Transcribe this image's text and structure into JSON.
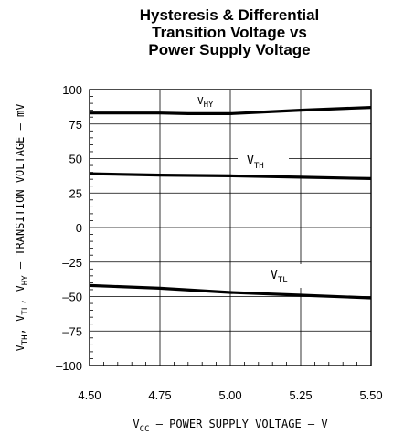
{
  "chart_data": {
    "type": "line",
    "title_lines": [
      "Hysteresis & Differential",
      "Transition Voltage vs",
      "Power Supply Voltage"
    ],
    "xlabel": {
      "main": "V",
      "sub": "CC",
      "rest": " – POWER SUPPLY VOLTAGE – V"
    },
    "ylabel": {
      "parts": [
        {
          "t": "V"
        },
        {
          "t": "TH",
          "sub": true
        },
        {
          "t": ", V"
        },
        {
          "t": "TL",
          "sub": true
        },
        {
          "t": ", V"
        },
        {
          "t": "HY",
          "sub": true
        },
        {
          "t": " – TRANSITION VOLTAGE – mV"
        }
      ]
    },
    "xlim": [
      4.5,
      5.5
    ],
    "ylim": [
      -100,
      100
    ],
    "x_ticks": [
      4.5,
      4.75,
      5.0,
      5.25,
      5.5
    ],
    "x_tick_labels": [
      "4.50",
      "4.75",
      "5.00",
      "5.25",
      "5.50"
    ],
    "y_ticks": [
      100,
      75,
      50,
      25,
      0,
      -25,
      -50,
      -75,
      -100
    ],
    "y_tick_labels": [
      "100",
      "75",
      "50",
      "25",
      "0",
      "–25",
      "–50",
      "–75",
      "–100"
    ],
    "grid": true,
    "series": [
      {
        "name": "V_HY",
        "label": {
          "main": "V",
          "sub": "HY"
        },
        "x": [
          4.5,
          4.75,
          4.85,
          5.0,
          5.25,
          5.5
        ],
        "y": [
          83,
          83,
          82.5,
          82.5,
          85,
          87
        ]
      },
      {
        "name": "V_TH",
        "label": {
          "main": "V",
          "sub": "TH"
        },
        "x": [
          4.5,
          4.75,
          5.0,
          5.25,
          5.5
        ],
        "y": [
          39,
          38,
          37.5,
          36.5,
          35.5
        ]
      },
      {
        "name": "V_TL",
        "label": {
          "main": "V",
          "sub": "TL"
        },
        "x": [
          4.5,
          4.75,
          5.0,
          5.25,
          5.5
        ],
        "y": [
          -42,
          -44,
          -47,
          -49,
          -51
        ]
      }
    ]
  }
}
